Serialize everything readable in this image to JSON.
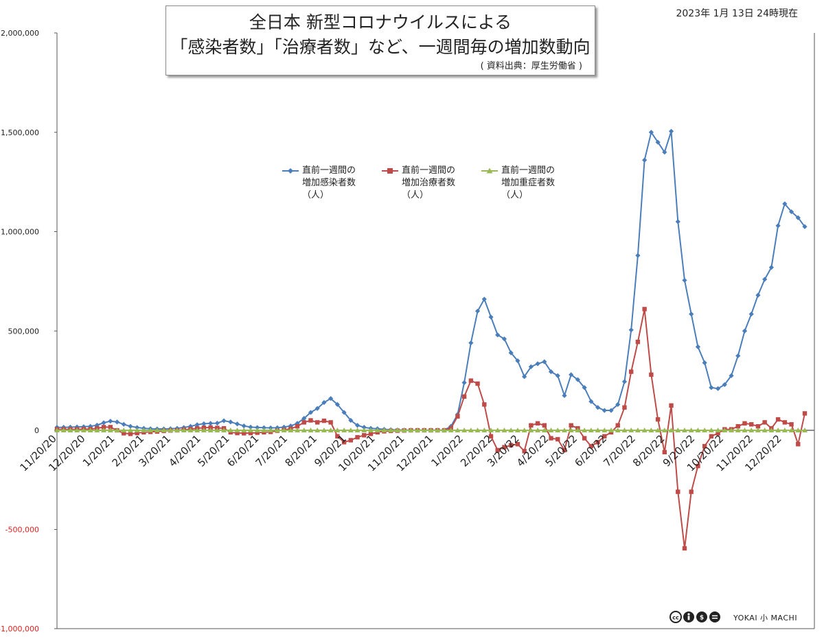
{
  "title": {
    "line1": "全日本  新型コロナウイルスによる",
    "line2": "「感染者数」「治療者数」など、一週間毎の増加数動向",
    "source": "( 資料出典：厚生労働省 )"
  },
  "date_stamp": "2023年 1月 13日 24時現在",
  "logos": {
    "license_icon": "cc-by-nc-nd-icon",
    "brand_text": "YOKAI 小 MACHI"
  },
  "colors": {
    "infections": "#4a7ebb",
    "treatment": "#be4b48",
    "severe": "#98b954",
    "zero_line": "#666666",
    "negative_tick": "#e02020"
  },
  "chart_data": {
    "type": "line",
    "xlabel": "",
    "ylabel": "",
    "ylim": [
      -1000000,
      2000000
    ],
    "yticks": [
      {
        "value": 2000000,
        "label": "2,000,000"
      },
      {
        "value": 1500000,
        "label": "1,500,000"
      },
      {
        "value": 1000000,
        "label": "1,000,000"
      },
      {
        "value": 500000,
        "label": "500,000"
      },
      {
        "value": 0,
        "label": "0"
      },
      {
        "value": -500000,
        "label": "-500,000"
      },
      {
        "value": -1000000,
        "label": "-1,000,000"
      }
    ],
    "x_tick_labels": [
      {
        "label": "11/20/20",
        "index": 0
      },
      {
        "label": "12/20/20",
        "index": 4.3
      },
      {
        "label": "1/20/21",
        "index": 8.7
      },
      {
        "label": "2/20/21",
        "index": 13.1
      },
      {
        "label": "3/20/21",
        "index": 17.1
      },
      {
        "label": "4/20/21",
        "index": 21.6
      },
      {
        "label": "5/20/21",
        "index": 25.9
      },
      {
        "label": "6/20/21",
        "index": 30.3
      },
      {
        "label": "7/20/21",
        "index": 34.6
      },
      {
        "label": "8/20/21",
        "index": 39.0
      },
      {
        "label": "9/20/21",
        "index": 43.4
      },
      {
        "label": "10/20/21",
        "index": 47.7
      },
      {
        "label": "11/20/21",
        "index": 52.1
      },
      {
        "label": "12/20/21",
        "index": 56.4
      },
      {
        "label": "1/20/22",
        "index": 60.9
      },
      {
        "label": "2/20/22",
        "index": 65.3
      },
      {
        "label": "3/20/22",
        "index": 69.3
      },
      {
        "label": "4/20/22",
        "index": 73.7
      },
      {
        "label": "5/20/22",
        "index": 78.0
      },
      {
        "label": "6/20/22",
        "index": 82.4
      },
      {
        "label": "7/20/22",
        "index": 86.7
      },
      {
        "label": "8/20/22",
        "index": 91.1
      },
      {
        "label": "9/20/22",
        "index": 95.6
      },
      {
        "label": "10/20/22",
        "index": 99.9
      },
      {
        "label": "11/20/22",
        "index": 104.3
      },
      {
        "label": "12/20/22",
        "index": 108.6
      }
    ],
    "grid": false,
    "legend_position": "upper-center",
    "series": [
      {
        "name": "直前一週間の増加感染者数（人）",
        "legend_lines": [
          "直前一週間の",
          "増加感染者数",
          "（人）"
        ],
        "marker": "diamond",
        "values": [
          15000,
          15000,
          16000,
          17000,
          18000,
          20000,
          26000,
          38000,
          46000,
          42000,
          30000,
          20000,
          14000,
          10000,
          8000,
          7000,
          7000,
          8000,
          10000,
          14000,
          20000,
          28000,
          33000,
          35000,
          36000,
          48000,
          42000,
          32000,
          22000,
          16000,
          14000,
          13000,
          12000,
          13000,
          16000,
          22000,
          35000,
          60000,
          90000,
          110000,
          140000,
          160000,
          130000,
          90000,
          50000,
          25000,
          15000,
          10000,
          8000,
          5000,
          3000,
          2000,
          1500,
          1000,
          1000,
          1000,
          1000,
          1000,
          1000,
          20000,
          80000,
          240000,
          440000,
          600000,
          660000,
          570000,
          480000,
          460000,
          390000,
          350000,
          270000,
          320000,
          335000,
          345000,
          295000,
          275000,
          175000,
          280000,
          255000,
          215000,
          145000,
          115000,
          100000,
          100000,
          130000,
          245000,
          505000,
          880000,
          1360000,
          1500000,
          1450000,
          1400000,
          1505000,
          1050000,
          755000,
          585000,
          420000,
          340000,
          215000,
          210000,
          230000,
          275000,
          375000,
          500000,
          585000,
          680000,
          760000,
          820000,
          1030000,
          1140000,
          1100000,
          1070000,
          1025000
        ]
      },
      {
        "name": "直前一週間の増加治療者数（人）",
        "legend_lines": [
          "直前一週間の",
          "増加治療者数",
          "（人）"
        ],
        "marker": "square",
        "values": [
          5000,
          5000,
          5000,
          5000,
          6000,
          6000,
          10000,
          16000,
          16000,
          0,
          -15000,
          -18000,
          -14000,
          -10000,
          -8000,
          -6000,
          -3000,
          -1000,
          0,
          3000,
          6000,
          10000,
          13000,
          14000,
          12000,
          10000,
          -10000,
          -14000,
          -15000,
          -14000,
          -12000,
          -10000,
          -8000,
          -2000,
          2000,
          8000,
          20000,
          40000,
          50000,
          40000,
          48000,
          40000,
          -30000,
          -60000,
          -50000,
          -35000,
          -25000,
          -18000,
          -10000,
          -5000,
          -3000,
          -2000,
          -1000,
          0,
          0,
          0,
          0,
          0,
          0,
          10000,
          70000,
          170000,
          250000,
          235000,
          130000,
          -30000,
          -100000,
          -85000,
          -75000,
          -70000,
          -105000,
          25000,
          35000,
          25000,
          -40000,
          -45000,
          -100000,
          25000,
          10000,
          -40000,
          -80000,
          -60000,
          -30000,
          -10000,
          25000,
          115000,
          295000,
          445000,
          610000,
          280000,
          55000,
          -110000,
          125000,
          -310000,
          -595000,
          -310000,
          -180000,
          -80000,
          -30000,
          -15000,
          5000,
          5000,
          20000,
          35000,
          30000,
          20000,
          40000,
          10000,
          55000,
          40000,
          30000,
          -70000,
          85000
        ]
      },
      {
        "name": "直前一週間の増加重症者数（人）",
        "legend_lines": [
          "直前一週間の",
          "増加重症者数",
          "（人）"
        ],
        "marker": "triangle",
        "values": [
          0,
          0,
          0,
          0,
          0,
          0,
          0,
          0,
          0,
          0,
          0,
          0,
          0,
          0,
          0,
          0,
          0,
          0,
          0,
          0,
          0,
          0,
          0,
          0,
          0,
          0,
          0,
          0,
          0,
          0,
          0,
          0,
          0,
          0,
          0,
          0,
          0,
          0,
          0,
          0,
          0,
          0,
          0,
          0,
          0,
          0,
          0,
          0,
          0,
          0,
          0,
          0,
          0,
          0,
          0,
          0,
          0,
          0,
          0,
          0,
          0,
          0,
          0,
          0,
          0,
          0,
          0,
          0,
          0,
          0,
          0,
          0,
          0,
          0,
          0,
          0,
          0,
          0,
          0,
          0,
          0,
          0,
          0,
          0,
          0,
          0,
          0,
          0,
          0,
          0,
          0,
          0,
          0,
          0,
          0,
          0,
          0,
          0,
          0,
          0,
          0,
          0,
          0,
          0,
          0,
          0,
          0,
          0,
          0,
          0,
          0,
          0,
          0
        ]
      }
    ]
  }
}
